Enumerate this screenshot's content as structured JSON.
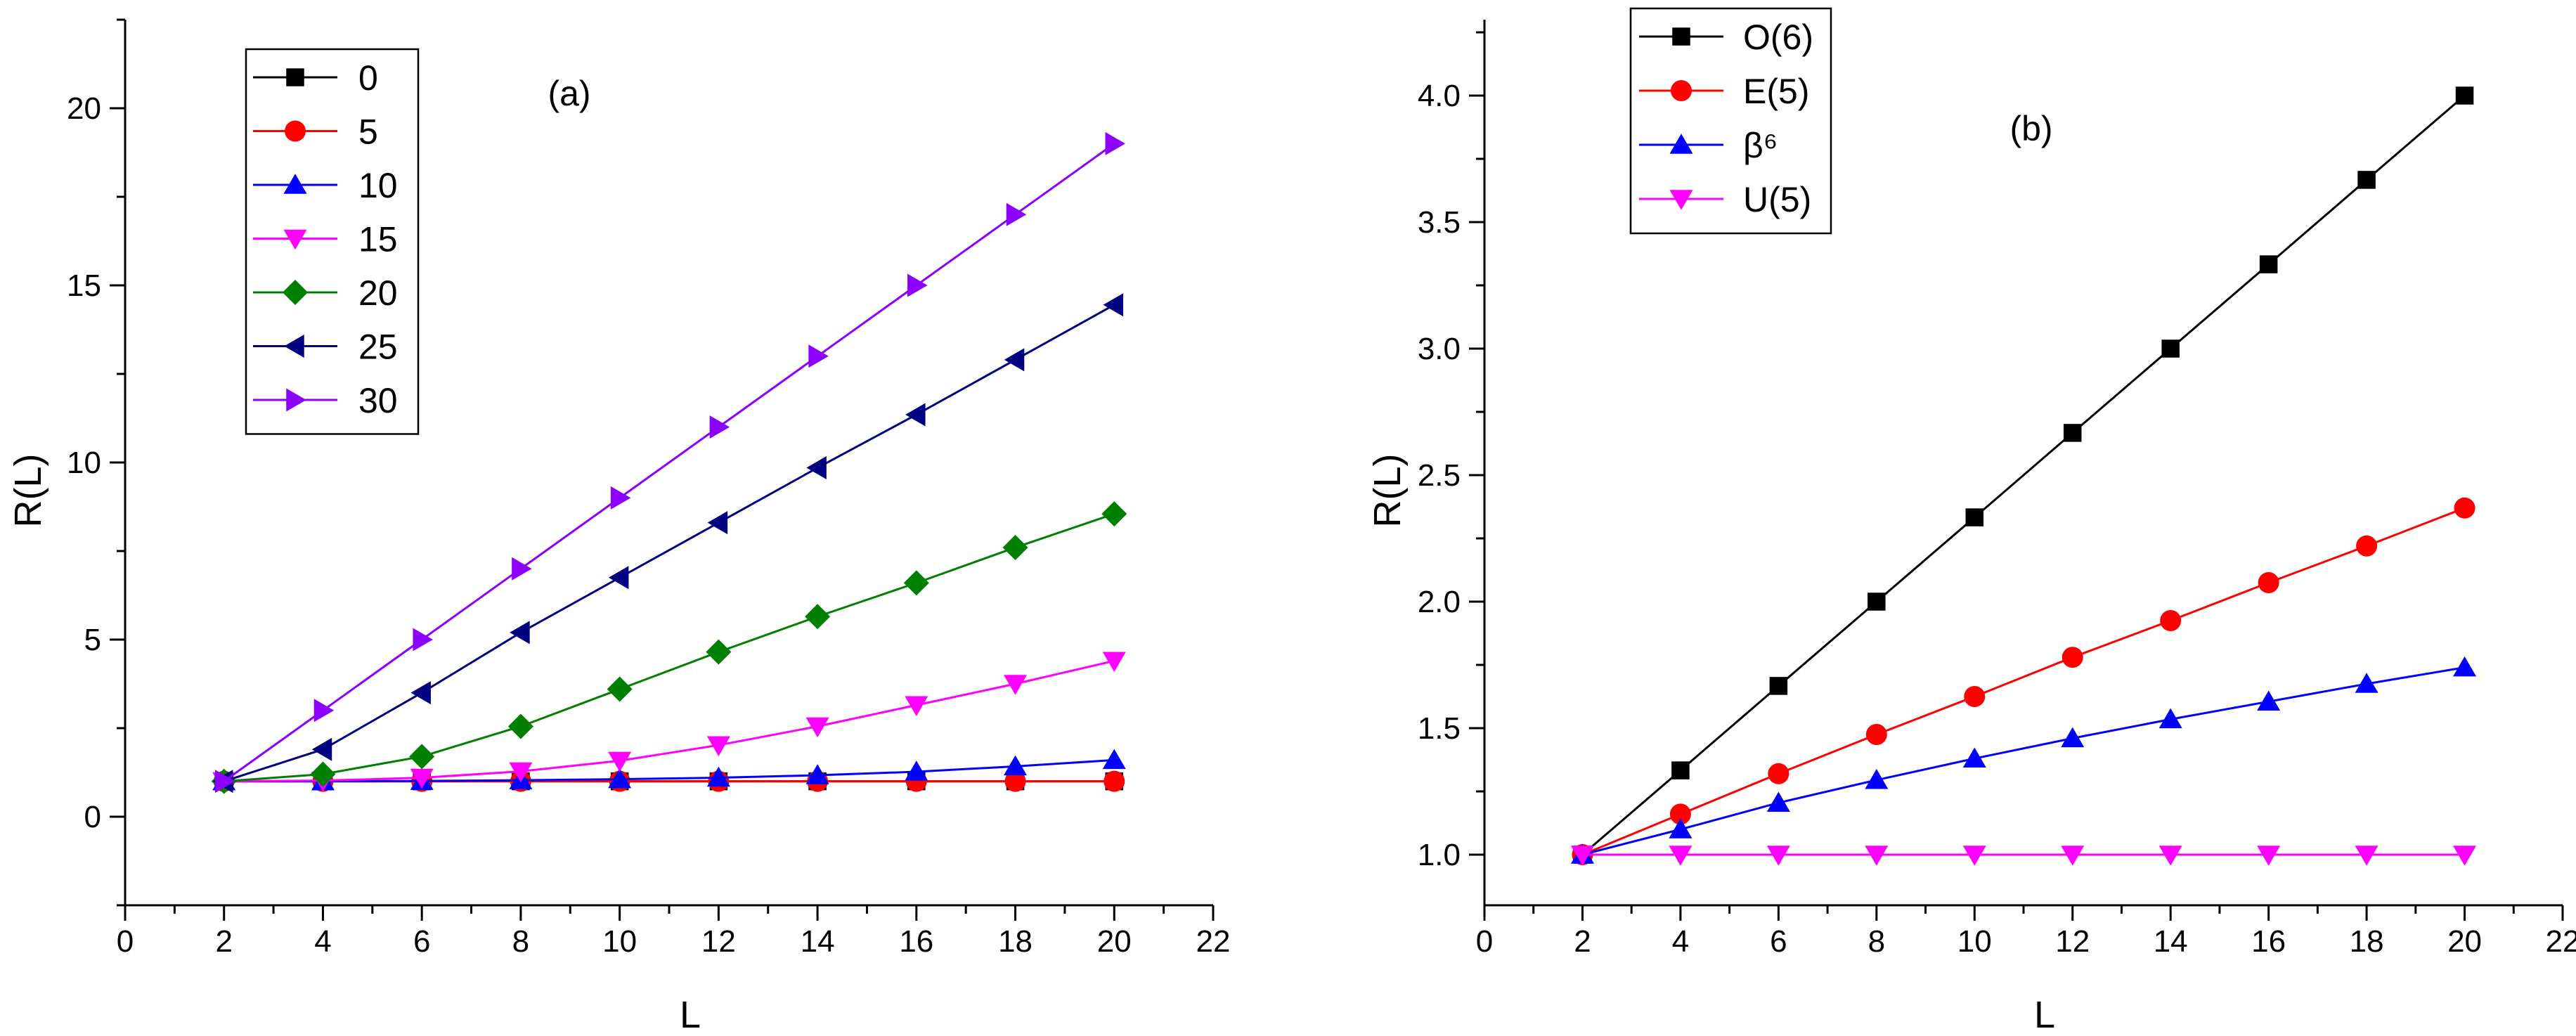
{
  "chart_data": [
    {
      "type": "line",
      "panel_label": "(a)",
      "xlabel": "L",
      "ylabel": "R(L)",
      "xlim": [
        0,
        22
      ],
      "ylim": [
        -2.5,
        22.5
      ],
      "xticks": [
        0,
        2,
        4,
        6,
        8,
        10,
        12,
        14,
        16,
        18,
        20,
        22
      ],
      "yticks": [
        0,
        5,
        10,
        15,
        20
      ],
      "legend_position": "top-left",
      "x": [
        2,
        4,
        6,
        8,
        10,
        12,
        14,
        16,
        18,
        20
      ],
      "series": [
        {
          "name": "0",
          "color": "#000000",
          "marker": "square",
          "values": [
            1,
            1,
            1,
            1,
            1,
            1,
            1,
            1,
            1,
            1
          ]
        },
        {
          "name": "5",
          "color": "#ff0000",
          "marker": "circle",
          "values": [
            1,
            1,
            1,
            1,
            1,
            1,
            1,
            1,
            1,
            1
          ]
        },
        {
          "name": "10",
          "color": "#0000ff",
          "marker": "triangle-up",
          "values": [
            1,
            1,
            1.01,
            1.03,
            1.06,
            1.1,
            1.17,
            1.27,
            1.42,
            1.6
          ]
        },
        {
          "name": "15",
          "color": "#ff00ff",
          "marker": "triangle-down",
          "values": [
            1,
            1.02,
            1.1,
            1.28,
            1.58,
            2.02,
            2.55,
            3.15,
            3.75,
            4.4
          ]
        },
        {
          "name": "20",
          "color": "#008000",
          "marker": "diamond",
          "values": [
            1,
            1.2,
            1.7,
            2.55,
            3.6,
            4.65,
            5.65,
            6.6,
            7.6,
            8.55
          ]
        },
        {
          "name": "25",
          "color": "#000080",
          "marker": "triangle-left",
          "values": [
            1,
            1.9,
            3.5,
            5.2,
            6.75,
            8.3,
            9.85,
            11.35,
            12.9,
            14.45
          ]
        },
        {
          "name": "30",
          "color": "#8b00ff",
          "marker": "triangle-right",
          "values": [
            1,
            3,
            5,
            7,
            9,
            11,
            13,
            15,
            17,
            19
          ]
        }
      ]
    },
    {
      "type": "line",
      "panel_label": "(b)",
      "xlabel": "L",
      "ylabel": "R(L)",
      "xlim": [
        0,
        22
      ],
      "ylim": [
        0.8,
        4.3
      ],
      "xticks": [
        0,
        2,
        4,
        6,
        8,
        10,
        12,
        14,
        16,
        18,
        20,
        22
      ],
      "yticks": [
        1.0,
        1.5,
        2.0,
        2.5,
        3.0,
        3.5,
        4.0
      ],
      "legend_position": "top-left",
      "x": [
        2,
        4,
        6,
        8,
        10,
        12,
        14,
        16,
        18,
        20
      ],
      "series": [
        {
          "name": "O(6)",
          "color": "#000000",
          "marker": "square",
          "values": [
            1,
            1.333,
            1.667,
            2.0,
            2.333,
            2.667,
            3.0,
            3.333,
            3.667,
            4.0
          ]
        },
        {
          "name": "E(5)",
          "color": "#ff0000",
          "marker": "circle",
          "values": [
            1,
            1.16,
            1.32,
            1.475,
            1.625,
            1.78,
            1.925,
            2.075,
            2.22,
            2.37
          ]
        },
        {
          "name": "β⁶",
          "color": "#0000ff",
          "marker": "triangle-up",
          "values": [
            1,
            1.1,
            1.205,
            1.295,
            1.38,
            1.46,
            1.535,
            1.605,
            1.675,
            1.74
          ]
        },
        {
          "name": "U(5)",
          "color": "#ff00ff",
          "marker": "triangle-down",
          "values": [
            1,
            1,
            1,
            1,
            1,
            1,
            1,
            1,
            1,
            1
          ]
        }
      ]
    }
  ]
}
